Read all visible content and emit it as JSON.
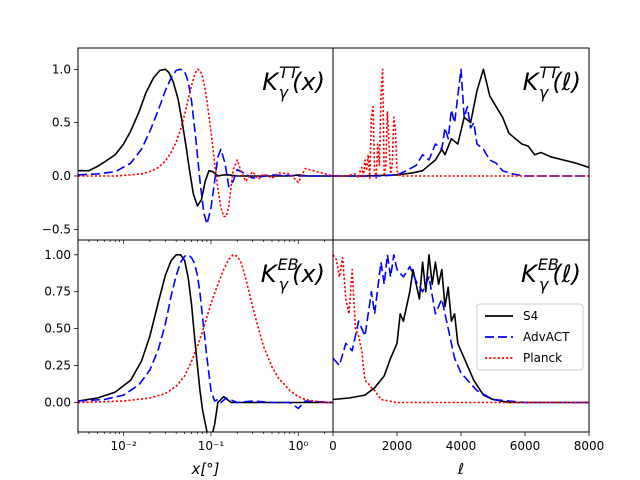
{
  "colors": {
    "S4": "#000000",
    "AdvACT": "#0000ff",
    "Planck": "#ff0000",
    "frame": "#000000"
  },
  "legend": {
    "placement": "center-right",
    "panel": "bottom-right",
    "entries": [
      {
        "name": "S4",
        "style": "solid"
      },
      {
        "name": "AdvACT",
        "style": "dashed"
      },
      {
        "name": "Planck",
        "style": "dotted"
      }
    ]
  },
  "chart_data": [
    {
      "id": "tt_x",
      "type": "line",
      "xscale": "log",
      "title": {
        "base": "K",
        "sup": "TT",
        "sub": "γ",
        "arg": "(x)"
      },
      "xlim": [
        0.003,
        2.5
      ],
      "ylim": [
        -0.6,
        1.2
      ],
      "yticks": [
        -0.5,
        0.0,
        0.5,
        1.0
      ],
      "ytick_labels": [
        "−0.5",
        "0.0",
        "0.5",
        "1.0"
      ],
      "series": [
        {
          "name": "S4",
          "x": [
            0.003,
            0.004,
            0.005,
            0.006,
            0.008,
            0.01,
            0.012,
            0.015,
            0.018,
            0.022,
            0.026,
            0.03,
            0.033,
            0.037,
            0.042,
            0.047,
            0.052,
            0.057,
            0.063,
            0.07,
            0.078,
            0.086,
            0.095,
            0.105,
            0.12,
            0.14,
            0.16,
            0.2,
            0.3,
            0.5,
            0.8,
            1.0,
            1.3,
            2.5
          ],
          "y": [
            0.05,
            0.05,
            0.09,
            0.13,
            0.2,
            0.3,
            0.42,
            0.6,
            0.78,
            0.92,
            0.99,
            1.0,
            0.97,
            0.88,
            0.72,
            0.5,
            0.27,
            0.05,
            -0.17,
            -0.28,
            -0.22,
            -0.05,
            0.05,
            0.04,
            0.0,
            0.01,
            0.01,
            0.0,
            0.0,
            0.0,
            0.0,
            0.01,
            0.0,
            0.0
          ]
        },
        {
          "name": "AdvACT",
          "x": [
            0.003,
            0.005,
            0.008,
            0.012,
            0.016,
            0.02,
            0.025,
            0.03,
            0.035,
            0.04,
            0.045,
            0.05,
            0.055,
            0.06,
            0.067,
            0.075,
            0.083,
            0.09,
            0.1,
            0.11,
            0.12,
            0.13,
            0.145,
            0.16,
            0.18,
            0.2,
            0.25,
            0.3,
            0.5,
            1.0,
            2.5
          ],
          "y": [
            0.01,
            0.02,
            0.04,
            0.12,
            0.25,
            0.42,
            0.62,
            0.8,
            0.92,
            0.99,
            1.0,
            0.98,
            0.88,
            0.7,
            0.35,
            -0.05,
            -0.35,
            -0.45,
            -0.3,
            -0.05,
            0.18,
            0.25,
            0.12,
            -0.1,
            -0.05,
            0.06,
            0.02,
            -0.02,
            0.01,
            0.0,
            0.0
          ]
        },
        {
          "name": "Planck",
          "x": [
            0.003,
            0.005,
            0.008,
            0.012,
            0.016,
            0.02,
            0.025,
            0.03,
            0.035,
            0.04,
            0.045,
            0.05,
            0.055,
            0.06,
            0.065,
            0.07,
            0.075,
            0.08,
            0.085,
            0.09,
            0.1,
            0.11,
            0.12,
            0.13,
            0.14,
            0.15,
            0.16,
            0.17,
            0.18,
            0.2,
            0.22,
            0.25,
            0.3,
            0.35,
            0.4,
            0.5,
            0.6,
            0.8,
            1.0,
            1.2,
            1.5,
            2.5
          ],
          "y": [
            0.0,
            0.0,
            0.0,
            0.01,
            0.02,
            0.04,
            0.08,
            0.14,
            0.22,
            0.32,
            0.44,
            0.58,
            0.72,
            0.85,
            0.95,
            1.0,
            0.99,
            0.93,
            0.83,
            0.7,
            0.42,
            0.12,
            -0.12,
            -0.3,
            -0.38,
            -0.38,
            -0.28,
            -0.1,
            0.06,
            0.15,
            0.05,
            -0.05,
            0.04,
            -0.03,
            0.02,
            -0.02,
            0.03,
            0.02,
            -0.06,
            0.07,
            0.05,
            0.0
          ]
        }
      ]
    },
    {
      "id": "tt_l",
      "type": "line",
      "xscale": "linear",
      "title": {
        "base": "K",
        "sup": "TT",
        "sub": "γ",
        "arg": "(ℓ)"
      },
      "xlim": [
        0,
        8000
      ],
      "ylim": [
        -0.6,
        1.2
      ],
      "series": [
        {
          "name": "S4",
          "x": [
            0,
            1000,
            2000,
            2500,
            2800,
            3000,
            3200,
            3400,
            3500,
            3700,
            3900,
            4100,
            4300,
            4500,
            4700,
            4900,
            5100,
            5300,
            5500,
            5700,
            5900,
            6100,
            6300,
            6500,
            6800,
            7200,
            7600,
            8000
          ],
          "y": [
            0.0,
            0.0,
            0.01,
            0.03,
            0.05,
            0.1,
            0.15,
            0.25,
            0.2,
            0.35,
            0.3,
            0.55,
            0.5,
            0.8,
            1.0,
            0.75,
            0.65,
            0.55,
            0.4,
            0.35,
            0.3,
            0.28,
            0.2,
            0.22,
            0.18,
            0.15,
            0.12,
            0.08
          ]
        },
        {
          "name": "AdvACT",
          "x": [
            0,
            1500,
            2000,
            2300,
            2600,
            2800,
            3000,
            3200,
            3400,
            3500,
            3600,
            3700,
            3800,
            3900,
            4000,
            4100,
            4200,
            4300,
            4400,
            4500,
            4700,
            4900,
            5100,
            5300,
            5600,
            6000,
            7000,
            8000
          ],
          "y": [
            0.0,
            0.0,
            0.01,
            0.05,
            0.1,
            0.2,
            0.15,
            0.3,
            0.25,
            0.45,
            0.35,
            0.62,
            0.5,
            0.75,
            1.0,
            0.55,
            0.65,
            0.45,
            0.5,
            0.3,
            0.25,
            0.15,
            0.12,
            0.05,
            0.02,
            0.0,
            0.0,
            0.0
          ]
        },
        {
          "name": "Planck",
          "x": [
            0,
            400,
            700,
            800,
            850,
            900,
            950,
            1000,
            1050,
            1100,
            1150,
            1200,
            1250,
            1300,
            1350,
            1400,
            1450,
            1500,
            1550,
            1600,
            1650,
            1700,
            1750,
            1800,
            1850,
            1900,
            1950,
            2000,
            2050,
            2100,
            2200,
            2500,
            3000,
            4000,
            8000
          ],
          "y": [
            0.0,
            0.0,
            0.02,
            -0.02,
            0.05,
            0.08,
            -0.02,
            0.15,
            0.05,
            0.2,
            -0.02,
            0.55,
            0.65,
            0.05,
            -0.02,
            0.3,
            0.1,
            0.75,
            1.0,
            0.02,
            0.1,
            0.6,
            0.3,
            0.02,
            0.1,
            0.55,
            0.45,
            0.05,
            0.02,
            0.0,
            0.0,
            0.0,
            0.0,
            0.0,
            0.0
          ]
        }
      ]
    },
    {
      "id": "eb_x",
      "type": "line",
      "xscale": "log",
      "title": {
        "base": "K",
        "sup": "EB",
        "sub": "γ",
        "arg": "(x)"
      },
      "xlabel": "x[°]",
      "xlim": [
        0.003,
        2.5
      ],
      "ylim": [
        -0.2,
        1.1
      ],
      "yticks": [
        0.0,
        0.25,
        0.5,
        0.75,
        1.0
      ],
      "ytick_labels": [
        "0.00",
        "0.25",
        "0.50",
        "0.75",
        "1.00"
      ],
      "xticks": [
        0.01,
        0.1,
        1.0
      ],
      "xtick_labels": [
        "10⁻²",
        "10⁻¹",
        "10⁰"
      ],
      "series": [
        {
          "name": "S4",
          "x": [
            0.003,
            0.005,
            0.008,
            0.012,
            0.016,
            0.02,
            0.025,
            0.03,
            0.035,
            0.04,
            0.045,
            0.05,
            0.055,
            0.06,
            0.065,
            0.07,
            0.075,
            0.08,
            0.09,
            0.1,
            0.11,
            0.12,
            0.14,
            0.17,
            0.25,
            0.4,
            1.0,
            2.5
          ],
          "y": [
            0.01,
            0.03,
            0.07,
            0.15,
            0.28,
            0.45,
            0.68,
            0.86,
            0.96,
            1.0,
            1.0,
            0.96,
            0.84,
            0.66,
            0.44,
            0.25,
            0.08,
            -0.05,
            -0.2,
            -0.25,
            -0.15,
            0.0,
            0.04,
            0.0,
            0.0,
            0.0,
            0.0,
            0.0
          ]
        },
        {
          "name": "AdvACT",
          "x": [
            0.003,
            0.006,
            0.01,
            0.015,
            0.02,
            0.025,
            0.03,
            0.035,
            0.04,
            0.045,
            0.05,
            0.055,
            0.06,
            0.065,
            0.07,
            0.075,
            0.08,
            0.09,
            0.1,
            0.11,
            0.12,
            0.13,
            0.15,
            0.2,
            0.3,
            0.5,
            0.8,
            1.0,
            1.2,
            2.5
          ],
          "y": [
            0.01,
            0.02,
            0.05,
            0.12,
            0.22,
            0.36,
            0.53,
            0.72,
            0.86,
            0.95,
            0.99,
            1.0,
            0.98,
            0.94,
            0.86,
            0.74,
            0.58,
            0.3,
            0.08,
            0.01,
            0.02,
            0.0,
            0.03,
            0.0,
            0.01,
            0.0,
            0.0,
            -0.04,
            0.01,
            0.0
          ]
        },
        {
          "name": "Planck",
          "x": [
            0.003,
            0.01,
            0.02,
            0.03,
            0.04,
            0.05,
            0.06,
            0.07,
            0.08,
            0.09,
            0.1,
            0.12,
            0.14,
            0.16,
            0.18,
            0.2,
            0.22,
            0.24,
            0.26,
            0.3,
            0.35,
            0.4,
            0.5,
            0.6,
            0.7,
            0.8,
            1.0,
            1.2,
            1.5,
            2.0,
            2.5
          ],
          "y": [
            0.0,
            0.01,
            0.03,
            0.06,
            0.11,
            0.18,
            0.28,
            0.38,
            0.48,
            0.58,
            0.67,
            0.8,
            0.9,
            0.97,
            1.0,
            0.99,
            0.95,
            0.88,
            0.8,
            0.65,
            0.5,
            0.38,
            0.24,
            0.16,
            0.12,
            0.08,
            0.04,
            0.02,
            0.01,
            0.0,
            0.0
          ]
        }
      ]
    },
    {
      "id": "eb_l",
      "type": "line",
      "xscale": "linear",
      "title": {
        "base": "K",
        "sup": "EB",
        "sub": "γ",
        "arg": "(ℓ)"
      },
      "xlabel": "ℓ",
      "xlim": [
        0,
        8000
      ],
      "ylim": [
        -0.2,
        1.1
      ],
      "xticks": [
        0,
        2000,
        4000,
        6000,
        8000
      ],
      "xtick_labels": [
        "0",
        "2000",
        "4000",
        "6000",
        "8000"
      ],
      "series": [
        {
          "name": "S4",
          "x": [
            0,
            500,
            1000,
            1300,
            1600,
            1800,
            2000,
            2100,
            2200,
            2400,
            2500,
            2700,
            2800,
            2900,
            3000,
            3100,
            3200,
            3300,
            3400,
            3500,
            3600,
            3700,
            3800,
            3900,
            4100,
            4400,
            4700,
            5000,
            5500,
            6000,
            7000,
            8000
          ],
          "y": [
            0.02,
            0.03,
            0.05,
            0.1,
            0.18,
            0.3,
            0.4,
            0.6,
            0.55,
            0.75,
            0.9,
            0.7,
            0.95,
            0.75,
            1.0,
            0.8,
            0.95,
            0.8,
            0.9,
            0.65,
            0.78,
            0.55,
            0.6,
            0.4,
            0.3,
            0.15,
            0.05,
            0.02,
            0.0,
            0.0,
            0.0,
            0.0
          ]
        },
        {
          "name": "AdvACT",
          "x": [
            0,
            200,
            400,
            600,
            800,
            1000,
            1200,
            1300,
            1500,
            1600,
            1700,
            1800,
            1900,
            2000,
            2200,
            2400,
            2600,
            2800,
            3000,
            3200,
            3400,
            3600,
            3800,
            4000,
            4500,
            5000,
            6000,
            8000
          ],
          "y": [
            0.3,
            0.25,
            0.4,
            0.35,
            0.55,
            0.45,
            0.75,
            0.6,
            0.95,
            0.8,
            1.0,
            0.85,
            1.0,
            0.9,
            0.85,
            0.92,
            0.82,
            0.75,
            0.85,
            0.6,
            0.7,
            0.5,
            0.3,
            0.2,
            0.08,
            0.02,
            0.0,
            0.0
          ]
        },
        {
          "name": "Planck",
          "x": [
            0,
            100,
            200,
            300,
            400,
            500,
            600,
            700,
            800,
            900,
            1000,
            1100,
            1200,
            1300,
            1500,
            2000,
            3000,
            8000
          ],
          "y": [
            1.0,
            0.97,
            0.85,
            0.98,
            0.7,
            0.6,
            0.9,
            0.5,
            0.45,
            0.35,
            0.15,
            0.13,
            0.1,
            0.08,
            0.02,
            0.0,
            0.0,
            0.0
          ]
        }
      ]
    }
  ]
}
